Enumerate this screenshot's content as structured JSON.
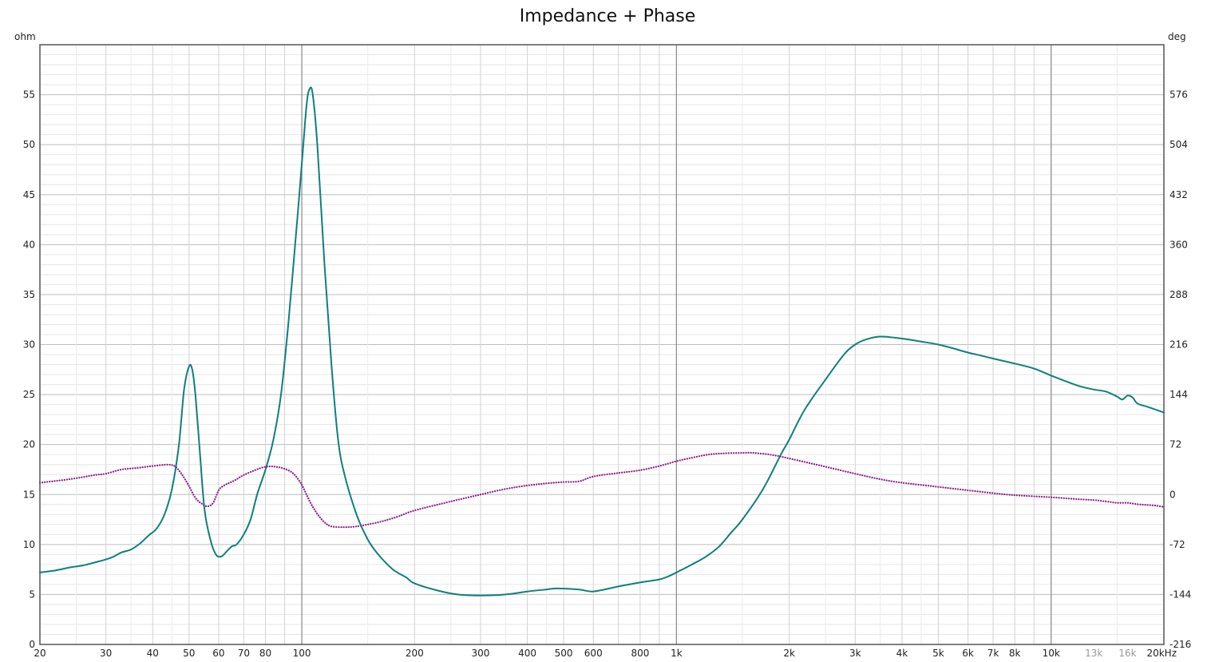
{
  "chart_data": {
    "type": "line",
    "title": "Impedance + Phase",
    "ylabel_left": "ohm",
    "ylabel_right": "deg",
    "x_scale": "log",
    "xlim": [
      20,
      20000
    ],
    "ylim_left": [
      0,
      60
    ],
    "ylim_right": [
      -216,
      648
    ],
    "grid": true,
    "x_ticks": [
      {
        "value": 20,
        "label": "20"
      },
      {
        "value": 30,
        "label": "30"
      },
      {
        "value": 40,
        "label": "40"
      },
      {
        "value": 50,
        "label": "50"
      },
      {
        "value": 60,
        "label": "60"
      },
      {
        "value": 70,
        "label": "70"
      },
      {
        "value": 80,
        "label": "80"
      },
      {
        "value": 100,
        "label": "100"
      },
      {
        "value": 200,
        "label": "200"
      },
      {
        "value": 300,
        "label": "300"
      },
      {
        "value": 400,
        "label": "400"
      },
      {
        "value": 500,
        "label": "500"
      },
      {
        "value": 600,
        "label": "600"
      },
      {
        "value": 800,
        "label": "800"
      },
      {
        "value": 1000,
        "label": "1k"
      },
      {
        "value": 2000,
        "label": "2k"
      },
      {
        "value": 3000,
        "label": "3k"
      },
      {
        "value": 4000,
        "label": "4k"
      },
      {
        "value": 5000,
        "label": "5k"
      },
      {
        "value": 6000,
        "label": "6k"
      },
      {
        "value": 7000,
        "label": "7k"
      },
      {
        "value": 8000,
        "label": "8k"
      },
      {
        "value": 10000,
        "label": "10k"
      },
      {
        "value": 13000,
        "label": "13k",
        "muted": true
      },
      {
        "value": 16000,
        "label": "16k",
        "muted": true
      },
      {
        "value": 20000,
        "label": "20kHz"
      }
    ],
    "y_ticks_left": [
      "0",
      "5",
      "10",
      "15",
      "20",
      "25",
      "30",
      "35",
      "40",
      "45",
      "50",
      "55"
    ],
    "y_ticks_right": [
      "-216",
      "-144",
      "-72",
      "0",
      "72",
      "144",
      "216",
      "288",
      "360",
      "432",
      "504",
      "576"
    ],
    "series": [
      {
        "color": "#0e7f80",
        "style": "solid",
        "axis": "left",
        "points": [
          [
            20,
            7.2
          ],
          [
            22,
            7.4
          ],
          [
            24,
            7.7
          ],
          [
            26,
            7.9
          ],
          [
            28,
            8.2
          ],
          [
            30,
            8.5
          ],
          [
            31.5,
            8.8
          ],
          [
            33,
            9.2
          ],
          [
            35,
            9.5
          ],
          [
            37,
            10.1
          ],
          [
            39,
            10.9
          ],
          [
            41,
            11.6
          ],
          [
            43,
            13.0
          ],
          [
            45,
            15.5
          ],
          [
            47,
            20.0
          ],
          [
            48.5,
            25.5
          ],
          [
            50,
            27.8
          ],
          [
            51,
            27.5
          ],
          [
            52,
            25.0
          ],
          [
            53.5,
            19.0
          ],
          [
            55,
            13.5
          ],
          [
            57,
            10.5
          ],
          [
            59,
            9.0
          ],
          [
            61,
            8.8
          ],
          [
            63,
            9.3
          ],
          [
            65,
            9.8
          ],
          [
            67,
            10.0
          ],
          [
            70,
            11.0
          ],
          [
            73,
            12.5
          ],
          [
            76,
            15.0
          ],
          [
            80,
            17.5
          ],
          [
            84,
            20.5
          ],
          [
            88,
            25.0
          ],
          [
            92,
            32.0
          ],
          [
            96,
            40.0
          ],
          [
            100,
            48.0
          ],
          [
            103,
            54.0
          ],
          [
            105,
            55.6
          ],
          [
            107,
            55.0
          ],
          [
            110,
            50.0
          ],
          [
            115,
            38.0
          ],
          [
            120,
            28.0
          ],
          [
            125,
            20.5
          ],
          [
            130,
            17.0
          ],
          [
            140,
            13.0
          ],
          [
            150,
            10.5
          ],
          [
            160,
            9.0
          ],
          [
            175,
            7.5
          ],
          [
            190,
            6.7
          ],
          [
            200,
            6.1
          ],
          [
            230,
            5.4
          ],
          [
            260,
            5.0
          ],
          [
            300,
            4.9
          ],
          [
            350,
            5.0
          ],
          [
            400,
            5.3
          ],
          [
            450,
            5.5
          ],
          [
            480,
            5.6
          ],
          [
            550,
            5.5
          ],
          [
            600,
            5.3
          ],
          [
            700,
            5.8
          ],
          [
            800,
            6.2
          ],
          [
            900,
            6.5
          ],
          [
            950,
            6.8
          ],
          [
            1000,
            7.2
          ],
          [
            1100,
            8.0
          ],
          [
            1200,
            8.8
          ],
          [
            1300,
            9.8
          ],
          [
            1400,
            11.2
          ],
          [
            1500,
            12.5
          ],
          [
            1700,
            15.5
          ],
          [
            1900,
            19.0
          ],
          [
            2000,
            20.5
          ],
          [
            2200,
            23.5
          ],
          [
            2500,
            26.5
          ],
          [
            2800,
            29.0
          ],
          [
            3000,
            30.0
          ],
          [
            3200,
            30.5
          ],
          [
            3500,
            30.8
          ],
          [
            4000,
            30.6
          ],
          [
            4500,
            30.3
          ],
          [
            5000,
            30.0
          ],
          [
            5500,
            29.6
          ],
          [
            6000,
            29.2
          ],
          [
            6500,
            28.9
          ],
          [
            7000,
            28.6
          ],
          [
            8000,
            28.1
          ],
          [
            9000,
            27.6
          ],
          [
            10000,
            26.9
          ],
          [
            11000,
            26.3
          ],
          [
            12000,
            25.8
          ],
          [
            13000,
            25.5
          ],
          [
            14000,
            25.3
          ],
          [
            15000,
            24.8
          ],
          [
            15500,
            24.5
          ],
          [
            16000,
            24.9
          ],
          [
            16500,
            24.7
          ],
          [
            17000,
            24.1
          ],
          [
            18000,
            23.8
          ],
          [
            19000,
            23.5
          ],
          [
            20000,
            23.2
          ]
        ]
      },
      {
        "color": "#8a1a8a",
        "style": "dotted",
        "axis": "right",
        "points": [
          [
            20,
            17
          ],
          [
            24,
            22
          ],
          [
            28,
            28
          ],
          [
            30,
            30
          ],
          [
            33,
            36
          ],
          [
            36,
            38
          ],
          [
            40,
            41
          ],
          [
            44,
            43
          ],
          [
            46,
            40
          ],
          [
            48,
            28
          ],
          [
            50,
            12
          ],
          [
            52,
            -5
          ],
          [
            54,
            -13
          ],
          [
            56,
            -17
          ],
          [
            58,
            -12
          ],
          [
            60,
            6
          ],
          [
            62,
            13
          ],
          [
            66,
            20
          ],
          [
            70,
            28
          ],
          [
            75,
            35
          ],
          [
            80,
            40
          ],
          [
            85,
            40
          ],
          [
            90,
            37
          ],
          [
            95,
            30
          ],
          [
            100,
            14
          ],
          [
            105,
            -10
          ],
          [
            110,
            -28
          ],
          [
            115,
            -40
          ],
          [
            120,
            -46
          ],
          [
            130,
            -47
          ],
          [
            140,
            -46
          ],
          [
            160,
            -40
          ],
          [
            180,
            -32
          ],
          [
            200,
            -23
          ],
          [
            250,
            -10
          ],
          [
            300,
            0
          ],
          [
            350,
            8
          ],
          [
            400,
            13
          ],
          [
            450,
            16
          ],
          [
            500,
            18
          ],
          [
            550,
            19
          ],
          [
            600,
            26
          ],
          [
            700,
            31
          ],
          [
            800,
            35
          ],
          [
            900,
            41
          ],
          [
            1000,
            48
          ],
          [
            1100,
            53
          ],
          [
            1200,
            57
          ],
          [
            1300,
            59
          ],
          [
            1500,
            60
          ],
          [
            1600,
            60
          ],
          [
            1800,
            57
          ],
          [
            2000,
            52
          ],
          [
            2500,
            40
          ],
          [
            3000,
            30
          ],
          [
            3500,
            22
          ],
          [
            4000,
            17
          ],
          [
            5000,
            11
          ],
          [
            6000,
            6
          ],
          [
            7000,
            2
          ],
          [
            8000,
            -1
          ],
          [
            10000,
            -4
          ],
          [
            12000,
            -7
          ],
          [
            13000,
            -8
          ],
          [
            14000,
            -10
          ],
          [
            15000,
            -12
          ],
          [
            16000,
            -12
          ],
          [
            17000,
            -14
          ],
          [
            18000,
            -15
          ],
          [
            19000,
            -16
          ],
          [
            20000,
            -18
          ]
        ]
      }
    ]
  }
}
